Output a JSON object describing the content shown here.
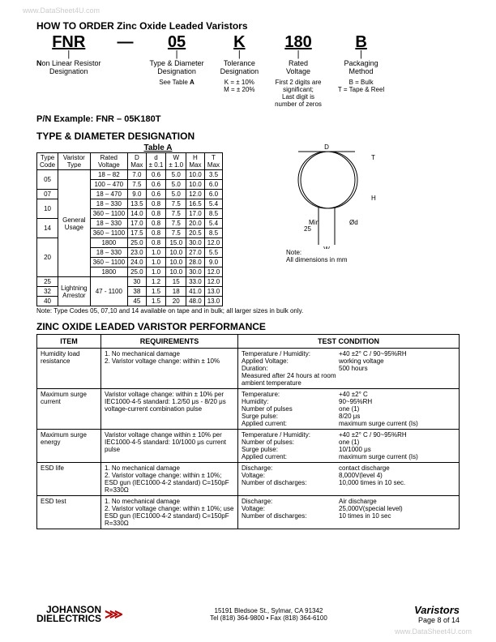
{
  "watermark": "www.DataSheet4U.com",
  "main_title": "HOW TO ORDER Zinc Oxide Leaded Varistors",
  "ordering": {
    "cols": [
      {
        "code": "FNR",
        "label": "Non Linear Resistor\nDesignation",
        "detail": ""
      },
      {
        "code": "05",
        "label": "Type & Diameter\nDesignation",
        "detail": "See Table A"
      },
      {
        "code": "K",
        "label": "Tolerance\nDesignation",
        "detail": "K = ± 10%\nM = ± 20%"
      },
      {
        "code": "180",
        "label": "Rated\nVoltage",
        "detail": "First 2 digits are\nsignificant;\nLast digit is\nnumber of zeros"
      },
      {
        "code": "B",
        "label": "Packaging\nMethod",
        "detail": "B = Bulk\nT = Tape & Reel"
      }
    ],
    "see_table_bold": "A"
  },
  "pn_example": "P/N Example:  FNR – 05K180T",
  "type_diameter_title": "TYPE & DIAMETER DESIGNATION",
  "table_a_label": "Table A",
  "tableA": {
    "headers": [
      "Type\nCode",
      "Varistor\nType",
      "Rated\nVoltage",
      "D\nMax",
      "d\n± 0.1",
      "W\n± 1.0",
      "H\nMax",
      "T\nMax"
    ],
    "rows": [
      [
        "05",
        "General\nUsage",
        "18 – 82",
        "7.0",
        "0.6",
        "5.0",
        "10.0",
        "3.5"
      ],
      [
        "",
        "",
        "100 – 470",
        "7.5",
        "0.6",
        "5.0",
        "10.0",
        "6.0"
      ],
      [
        "07",
        "",
        "18 – 470",
        "9.0",
        "0.6",
        "5.0",
        "12.0",
        "6.0"
      ],
      [
        "10",
        "",
        "18 – 330",
        "13.5",
        "0.8",
        "7.5",
        "16.5",
        "5.4"
      ],
      [
        "",
        "",
        "360 – 1100",
        "14.0",
        "0.8",
        "7.5",
        "17.0",
        "8.5"
      ],
      [
        "14",
        "",
        "18 – 330",
        "17.0",
        "0.8",
        "7.5",
        "20.0",
        "5.4"
      ],
      [
        "",
        "",
        "360 – 1100",
        "17.5",
        "0.8",
        "7.5",
        "20.5",
        "8.5"
      ],
      [
        "20",
        "",
        "1800",
        "25.0",
        "0.8",
        "15.0",
        "30.0",
        "12.0"
      ],
      [
        "",
        "",
        "18 – 330",
        "23.0",
        "1.0",
        "10.0",
        "27.0",
        "5.5"
      ],
      [
        "",
        "",
        "360 – 1100",
        "24.0",
        "1.0",
        "10.0",
        "28.0",
        "9.0"
      ],
      [
        "",
        "",
        "1800",
        "25.0",
        "1.0",
        "10.0",
        "30.0",
        "12.0"
      ],
      [
        "25",
        "Lightning\nArrestor",
        "47 - 1100",
        "30",
        "1.2",
        "15",
        "33.0",
        "12.0"
      ],
      [
        "32",
        "",
        "",
        "38",
        "1.5",
        "18",
        "41.0",
        "13.0"
      ],
      [
        "40",
        "",
        "",
        "45",
        "1.5",
        "20",
        "48.0",
        "13.0"
      ]
    ],
    "diagram_note": "Note:\nAll dimensions in mm"
  },
  "tableA_note": "Note:   Type Codes 05, 07,10 and 14 available on tape and in bulk; all larger sizes in bulk only.",
  "perf_title": "ZINC OXIDE LEADED VARISTOR PERFORMANCE",
  "perf": {
    "headers": [
      "ITEM",
      "REQUIREMENTS",
      "TEST CONDITION"
    ],
    "rows": [
      {
        "item": "Humidity load resistance",
        "req": "1. No mechanical damage\n2. Varistor voltage change: within ± 10%",
        "cond": [
          [
            "Temperature / Humidity:",
            "+40 ±2° C / 90~95%RH"
          ],
          [
            "Applied Voltage:",
            "working voltage"
          ],
          [
            "Duration:",
            "500 hours"
          ],
          [
            "Measured after 24 hours at room ambient temperature",
            ""
          ]
        ]
      },
      {
        "item": "Maximum surge current",
        "req": "Varistor voltage change: within ± 10% per IEC1000-4-5 standard: 1.2/50 μs - 8/20 μs voltage-current combination pulse",
        "cond": [
          [
            "Temperature:",
            "+40 ±2° C"
          ],
          [
            "Humidity:",
            "90~95%RH"
          ],
          [
            "Number of pulses",
            "one (1)"
          ],
          [
            "Surge pulse:",
            "8/20 μs"
          ],
          [
            "Applied current:",
            "maximum surge current (Is)"
          ]
        ]
      },
      {
        "item": "Maximum surge energy",
        "req": "Varistor voltage change within ± 10% per IEC1000-4-5 standard: 10/1000 μs current pulse",
        "cond": [
          [
            "Temperature / Humidity:",
            "+40 ±2° C / 90~95%RH"
          ],
          [
            "Number of pulses:",
            "one (1)"
          ],
          [
            "Surge pulse:",
            "10/1000 μs"
          ],
          [
            "Applied current:",
            "maximum surge current (Is)"
          ]
        ]
      },
      {
        "item": "ESD life",
        "req": "1. No mechanical damage\n2. Varistor voltage change: within ± 10%; ESD gun (IEC1000-4-2 standard) C=150pF R=330Ω",
        "cond": [
          [
            "Discharge:",
            "contact discharge"
          ],
          [
            "Voltage:",
            "8,000V(level 4)"
          ],
          [
            "Number of discharges:",
            "10,000 times in 10 sec."
          ]
        ]
      },
      {
        "item": "ESD test",
        "req": "1. No mechanical damage\n2. Varistor voltage change: within ± 10%; use ESD gun (IEC1000-4-2 standard) C=150pF R=330Ω",
        "cond": [
          [
            "Discharge:",
            "Air discharge"
          ],
          [
            "Voltage:",
            "25,000V(special level)"
          ],
          [
            "Number of discharges:",
            "10 times in 10 sec"
          ]
        ]
      }
    ]
  },
  "footer": {
    "company1": "JOHANSON",
    "company2": "DIELECTRICS",
    "address": "15191 Bledsoe St., Sylmar, CA 91342",
    "contact": "Tel (818) 364-9800 • Fax (818) 364-6100",
    "product": "Varistors",
    "page": "Page 8 of  14"
  }
}
